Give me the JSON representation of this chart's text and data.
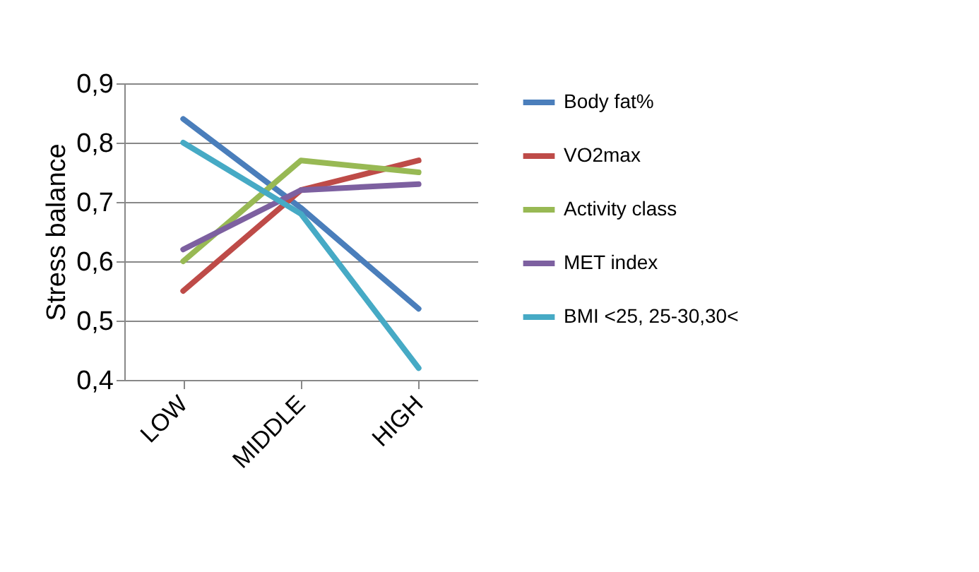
{
  "chart_data": {
    "type": "line",
    "ylabel": "Stress balance",
    "categories": [
      "LOW",
      "MIDDLE",
      "HIGH"
    ],
    "series": [
      {
        "name": "Body fat%",
        "color": "#4a7ebb",
        "values": [
          0.84,
          0.69,
          0.52
        ]
      },
      {
        "name": "VO2max",
        "color": "#be4b48",
        "values": [
          0.55,
          0.72,
          0.77
        ]
      },
      {
        "name": "Activity class",
        "color": "#98b954",
        "values": [
          0.6,
          0.77,
          0.75
        ]
      },
      {
        "name": "MET index",
        "color": "#7d60a0",
        "values": [
          0.62,
          0.72,
          0.73
        ]
      },
      {
        "name": "BMI <25, 25-30,30<",
        "color": "#46aac5",
        "values": [
          0.8,
          0.68,
          0.42
        ]
      }
    ],
    "ylim": [
      0.4,
      0.9
    ],
    "yticks": [
      {
        "value": 0.4,
        "label": "0,4"
      },
      {
        "value": 0.5,
        "label": "0,5"
      },
      {
        "value": 0.6,
        "label": "0,6"
      },
      {
        "value": 0.7,
        "label": "0,7"
      },
      {
        "value": 0.8,
        "label": "0,8"
      },
      {
        "value": 0.9,
        "label": "0,9"
      }
    ],
    "grid": "y",
    "legend": "right",
    "marker": "none",
    "line_style": "solid"
  }
}
